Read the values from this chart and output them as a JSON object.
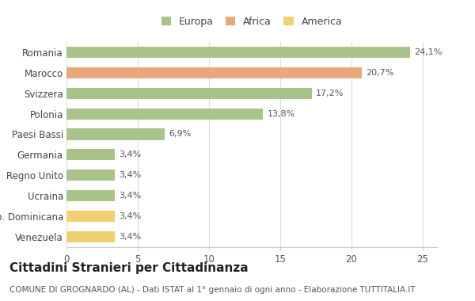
{
  "categories": [
    "Romania",
    "Marocco",
    "Svizzera",
    "Polonia",
    "Paesi Bassi",
    "Germania",
    "Regno Unito",
    "Ucraina",
    "Rep. Dominicana",
    "Venezuela"
  ],
  "values": [
    24.1,
    20.7,
    17.2,
    13.8,
    6.9,
    3.4,
    3.4,
    3.4,
    3.4,
    3.4
  ],
  "labels": [
    "24,1%",
    "20,7%",
    "17,2%",
    "13,8%",
    "6,9%",
    "3,4%",
    "3,4%",
    "3,4%",
    "3,4%",
    "3,4%"
  ],
  "colors": [
    "#a8c48a",
    "#e8a87c",
    "#a8c48a",
    "#a8c48a",
    "#a8c48a",
    "#a8c48a",
    "#a8c48a",
    "#a8c48a",
    "#f0d070",
    "#f0d070"
  ],
  "legend": [
    {
      "label": "Europa",
      "color": "#a8c48a"
    },
    {
      "label": "Africa",
      "color": "#e8a87c"
    },
    {
      "label": "America",
      "color": "#f0d070"
    }
  ],
  "xlim": [
    0,
    26
  ],
  "xticks": [
    0,
    5,
    10,
    15,
    20,
    25
  ],
  "title": "Cittadini Stranieri per Cittadinanza",
  "subtitle": "COMUNE DI GROGNARDO (AL) - Dati ISTAT al 1° gennaio di ogni anno - Elaborazione TUTTITALIA.IT",
  "background_color": "#ffffff",
  "bar_height": 0.55,
  "title_fontsize": 11,
  "subtitle_fontsize": 7.5,
  "label_fontsize": 8,
  "tick_fontsize": 8.5,
  "legend_fontsize": 9
}
